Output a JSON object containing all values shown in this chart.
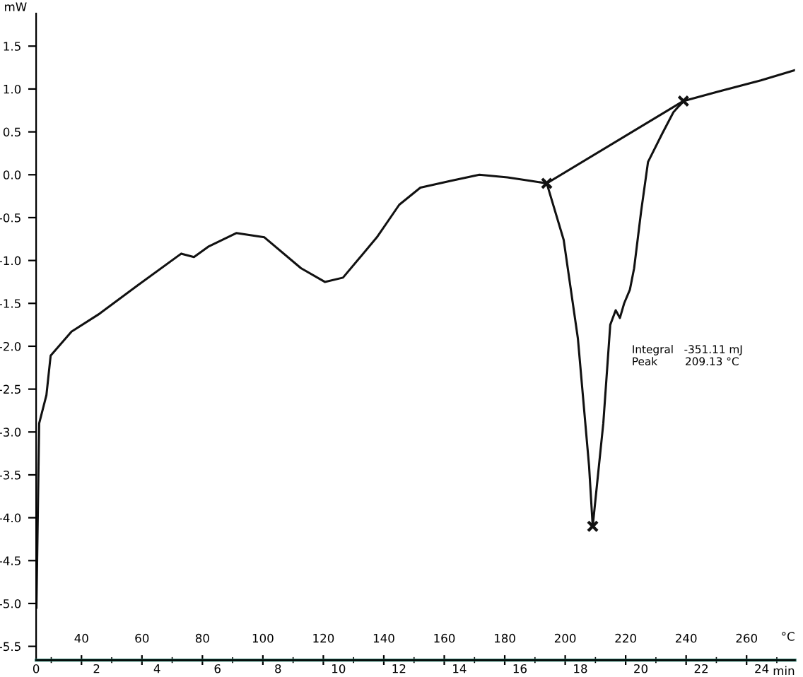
{
  "chart_data": {
    "type": "line",
    "xlabel": "°C",
    "x2label": "min",
    "ylabel": "mW",
    "series": [
      {
        "color": "#111111",
        "x": [
          25.1,
          26,
          28.4,
          29.8,
          36.7,
          46.0,
          58.6,
          73.0,
          77.2,
          81.9,
          91.2,
          100.5,
          112.6,
          120.5,
          126.5,
          137.7,
          145.1,
          152.1,
          162.3,
          171.6,
          180.9,
          193.9,
          199.5,
          204.2,
          207.9,
          209.1,
          212.6,
          214.9,
          216.7,
          218.1,
          219.5,
          221.4,
          222.8,
          225.1,
          227.4,
          232.1,
          235.8,
          239.1,
          250.7,
          264.7,
          276
        ],
        "values": [
          -5.05,
          -2.9,
          -2.57,
          -2.11,
          -1.83,
          -1.62,
          -1.29,
          -0.92,
          -0.96,
          -0.84,
          -0.68,
          -0.73,
          -1.09,
          -1.25,
          -1.2,
          -0.73,
          -0.35,
          -0.15,
          -0.07,
          0.0,
          -0.03,
          -0.1,
          -0.76,
          -1.91,
          -3.4,
          -4.1,
          -2.9,
          -1.75,
          -1.58,
          -1.67,
          -1.5,
          -1.34,
          -1.09,
          -0.43,
          0.15,
          0.48,
          0.73,
          0.86,
          0.97,
          1.1,
          1.22
        ]
      },
      {
        "color": "#111111",
        "x": [
          193.9,
          239.1
        ],
        "values": [
          -0.1,
          0.86
        ]
      },
      {
        "type": "scatter",
        "color": "#111111",
        "x": [
          193.9,
          209.1,
          239.1
        ],
        "values": [
          -0.1,
          -4.1,
          0.86
        ],
        "marker": "cross"
      }
    ],
    "annotations": [
      "Integral   -351.11 mJ\nPeak        209.13 °C"
    ],
    "xlim": [
      25,
      276
    ],
    "ylim": [
      -5.66,
      1.88
    ],
    "xticks": [
      40,
      60,
      80,
      100,
      120,
      140,
      160,
      180,
      200,
      220,
      240,
      260
    ],
    "x2lim": [
      0,
      25.1
    ],
    "x2ticks": [
      0,
      2,
      4,
      6,
      8,
      10,
      12,
      14,
      16,
      18,
      20,
      22,
      24
    ],
    "yticks": [
      {
        "value": 1.5,
        "label": "1.5"
      },
      {
        "value": 1.0,
        "label": "1.0"
      },
      {
        "value": 0.5,
        "label": "0.5"
      },
      {
        "value": 0.0,
        "label": "0.0"
      },
      {
        "value": -0.5,
        "label": "-0.5"
      },
      {
        "value": -1.0,
        "label": "-1.0"
      },
      {
        "value": -1.5,
        "label": "-1.5"
      },
      {
        "value": -2.0,
        "label": "-2.0"
      },
      {
        "value": -2.5,
        "label": "-2.5"
      },
      {
        "value": -3.0,
        "label": "-3.0"
      },
      {
        "value": -3.5,
        "label": "-3.5"
      },
      {
        "value": -4.0,
        "label": "-4.0"
      },
      {
        "value": -4.5,
        "label": "-4.5"
      },
      {
        "value": -5.0,
        "label": "-5.0"
      },
      {
        "value": -5.5,
        "label": "-5.5"
      }
    ],
    "grid": false,
    "legend": false
  }
}
